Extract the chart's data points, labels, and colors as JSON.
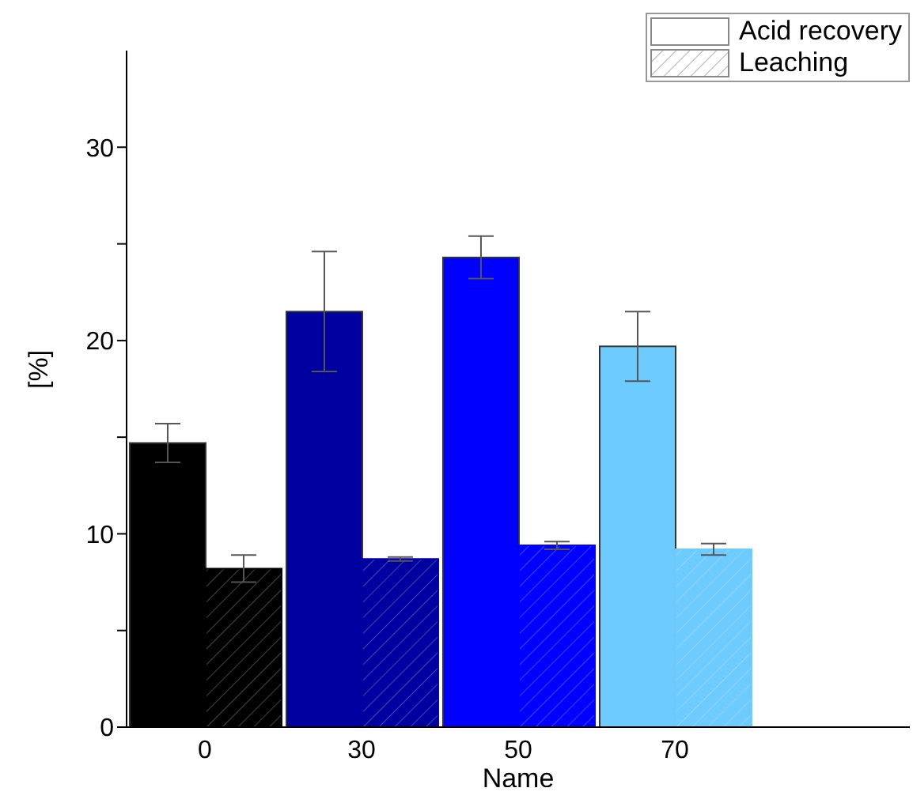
{
  "chart_data": {
    "type": "bar",
    "xlabel": "Name",
    "ylabel": "[%]",
    "categories": [
      "0",
      "30",
      "50",
      "70",
      null
    ],
    "series": [
      {
        "name": "Acid recovery",
        "color": "#ffffff",
        "colors": [
          "#000000",
          "#0000a0",
          "#0000ff",
          "#6dcbff",
          null
        ],
        "values": [
          14.7,
          21.5,
          24.3,
          19.7,
          null
        ],
        "errors": [
          1.0,
          3.1,
          1.1,
          1.8,
          null
        ]
      },
      {
        "name": "Leaching",
        "color": "#ffffff",
        "colors": [
          "#000000",
          "#0000a0",
          "#0000ff",
          "#6dcbff",
          null
        ],
        "values": [
          8.2,
          8.7,
          9.4,
          9.2,
          null
        ],
        "errors": [
          0.7,
          0.1,
          0.2,
          0.3,
          null
        ]
      }
    ],
    "ylim": [
      0,
      35
    ],
    "yticks": [
      0,
      {
        "value": 5,
        "label": null
      },
      10,
      {
        "value": 15,
        "label": null
      },
      20,
      {
        "value": 25,
        "label": null
      },
      30
    ],
    "legend": "top right",
    "grid": false
  }
}
